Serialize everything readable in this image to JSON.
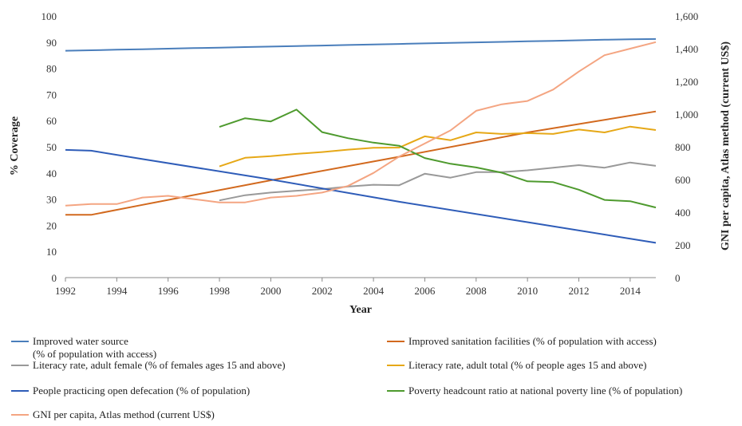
{
  "chart_data": {
    "type": "line",
    "xlabel": "Year",
    "ylabel_left": "% Coverage",
    "ylabel_right": "GNI per capita, Atlas method (current US$)",
    "x_ticks": [
      "1992",
      "1994",
      "1996",
      "1998",
      "2000",
      "2002",
      "2004",
      "2006",
      "2008",
      "2010",
      "2012",
      "2014"
    ],
    "y_left_ticks": [
      "0",
      "10",
      "20",
      "30",
      "40",
      "50",
      "60",
      "70",
      "80",
      "90",
      "100"
    ],
    "y_right_ticks": [
      "0",
      "200",
      "400",
      "600",
      "800",
      "1,000",
      "1,200",
      "1,400",
      "1,600"
    ],
    "xlim": [
      1992,
      2015
    ],
    "ylim_left": [
      0,
      100
    ],
    "ylim_right": [
      0,
      1600
    ],
    "grid": false,
    "legend_position": "bottom",
    "series": [
      {
        "name": "Improved water source",
        "name_line2": "(% of population with access)",
        "color": "#4a7ebb",
        "axis": "left",
        "x": [
          1992,
          1993,
          1994,
          1995,
          1996,
          1997,
          1998,
          1999,
          2000,
          2001,
          2002,
          2003,
          2004,
          2005,
          2006,
          2007,
          2008,
          2009,
          2010,
          2011,
          2012,
          2013,
          2014,
          2015
        ],
        "y": [
          86.7,
          86.9,
          87.1,
          87.3,
          87.5,
          87.7,
          87.9,
          88.1,
          88.3,
          88.5,
          88.7,
          88.9,
          89.1,
          89.3,
          89.5,
          89.7,
          89.9,
          90.1,
          90.3,
          90.5,
          90.7,
          90.9,
          91.1,
          91.2
        ]
      },
      {
        "name": "Improved sanitation facilities (% of population with access)",
        "color": "#d2691e",
        "axis": "left",
        "x": [
          1992,
          1993,
          1995,
          2000,
          2005,
          2010,
          2015
        ],
        "y": [
          24,
          24,
          27.8,
          37.2,
          46.2,
          55.5,
          63.5
        ]
      },
      {
        "name": "Literacy rate, adult female (% of females ages 15 and above)",
        "color": "#999999",
        "axis": "left",
        "x": [
          1998,
          1999,
          2000,
          2001,
          2002,
          2003,
          2004,
          2005,
          2006,
          2007,
          2008,
          2009,
          2010,
          2011,
          2012,
          2013,
          2014,
          2015
        ],
        "y": [
          29.5,
          31.5,
          32.5,
          33.2,
          33.8,
          34.8,
          35.5,
          35.3,
          39.7,
          38.2,
          40.3,
          40.3,
          41,
          42,
          43,
          42,
          44,
          42.7
        ]
      },
      {
        "name": "Literacy rate, adult total (% of people ages 15 and above)",
        "color": "#e6a817",
        "axis": "left",
        "x": [
          1998,
          1999,
          2000,
          2001,
          2002,
          2003,
          2004,
          2005,
          2006,
          2007,
          2008,
          2009,
          2010,
          2011,
          2012,
          2013,
          2014,
          2015
        ],
        "y": [
          42.5,
          45.8,
          46.4,
          47.3,
          48,
          48.9,
          49.6,
          49.7,
          54,
          52.5,
          55.5,
          54.9,
          55.2,
          54.9,
          56.6,
          55.5,
          57.7,
          56.4
        ]
      },
      {
        "name": "People practicing open defecation (% of population)",
        "color": "#2e5cb8",
        "axis": "left",
        "x": [
          1992,
          1993,
          1995,
          2000,
          2005,
          2010,
          2015
        ],
        "y": [
          48.8,
          48.5,
          45.3,
          37.5,
          29,
          21.2,
          13.3
        ]
      },
      {
        "name": "Poverty headcount ratio at national poverty line (% of population)",
        "color": "#4e9a2e",
        "axis": "left",
        "x": [
          1998,
          1999,
          2000,
          2001,
          2002,
          2003,
          2004,
          2005,
          2006,
          2007,
          2008,
          2009,
          2010,
          2011,
          2012,
          2013,
          2014,
          2015
        ],
        "y": [
          57.6,
          60.9,
          59.7,
          64.2,
          55.6,
          53.3,
          51.6,
          50.4,
          45.7,
          43.5,
          42.1,
          40.1,
          36.8,
          36.5,
          33.6,
          29.7,
          29.2,
          26.8
        ]
      },
      {
        "name": "GNI per capita, Atlas method (current US$)",
        "color": "#f4a582",
        "axis": "right",
        "x": [
          1992,
          1993,
          1994,
          1995,
          1996,
          1997,
          1998,
          1999,
          2000,
          2001,
          2002,
          2003,
          2004,
          2005,
          2006,
          2007,
          2008,
          2009,
          2010,
          2011,
          2012,
          2013,
          2014,
          2015
        ],
        "y": [
          440,
          450,
          450,
          490,
          500,
          480,
          460,
          460,
          490,
          500,
          520,
          560,
          640,
          740,
          820,
          900,
          1020,
          1060,
          1080,
          1150,
          1260,
          1360,
          1400,
          1440
        ]
      }
    ]
  }
}
